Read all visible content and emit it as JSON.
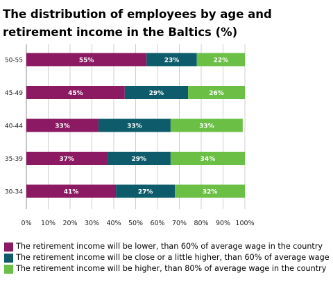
{
  "title": "The distribution of employees by age and retirement income in the Baltics (%)",
  "colors": {
    "lower": "#8b1a63",
    "close": "#0e5c6b",
    "higher": "#6bbf45",
    "grid": "#cfcfcf"
  },
  "chart_data": {
    "type": "bar",
    "orientation": "horizontal",
    "stacked": true,
    "categories": [
      "50-55",
      "45-49",
      "40-44",
      "35-39",
      "30-34"
    ],
    "series": [
      {
        "name": "The retirement income will be lower, than 60% of average wage in the country",
        "values": [
          55,
          45,
          33,
          37,
          41
        ]
      },
      {
        "name": "The retirement income will be close or a little higher, than 60% of average wage",
        "values": [
          23,
          29,
          33,
          29,
          27
        ]
      },
      {
        "name": "The retirement income will be higher, than 80% of average wage in the country",
        "values": [
          22,
          26,
          33,
          34,
          32
        ]
      }
    ],
    "xlim": [
      0,
      100
    ],
    "xticks": [
      "0%",
      "10%",
      "20%",
      "30%",
      "40%",
      "50%",
      "60%",
      "70%",
      "80%",
      "90%",
      "100%"
    ],
    "grid": true,
    "legend": "bottom"
  }
}
